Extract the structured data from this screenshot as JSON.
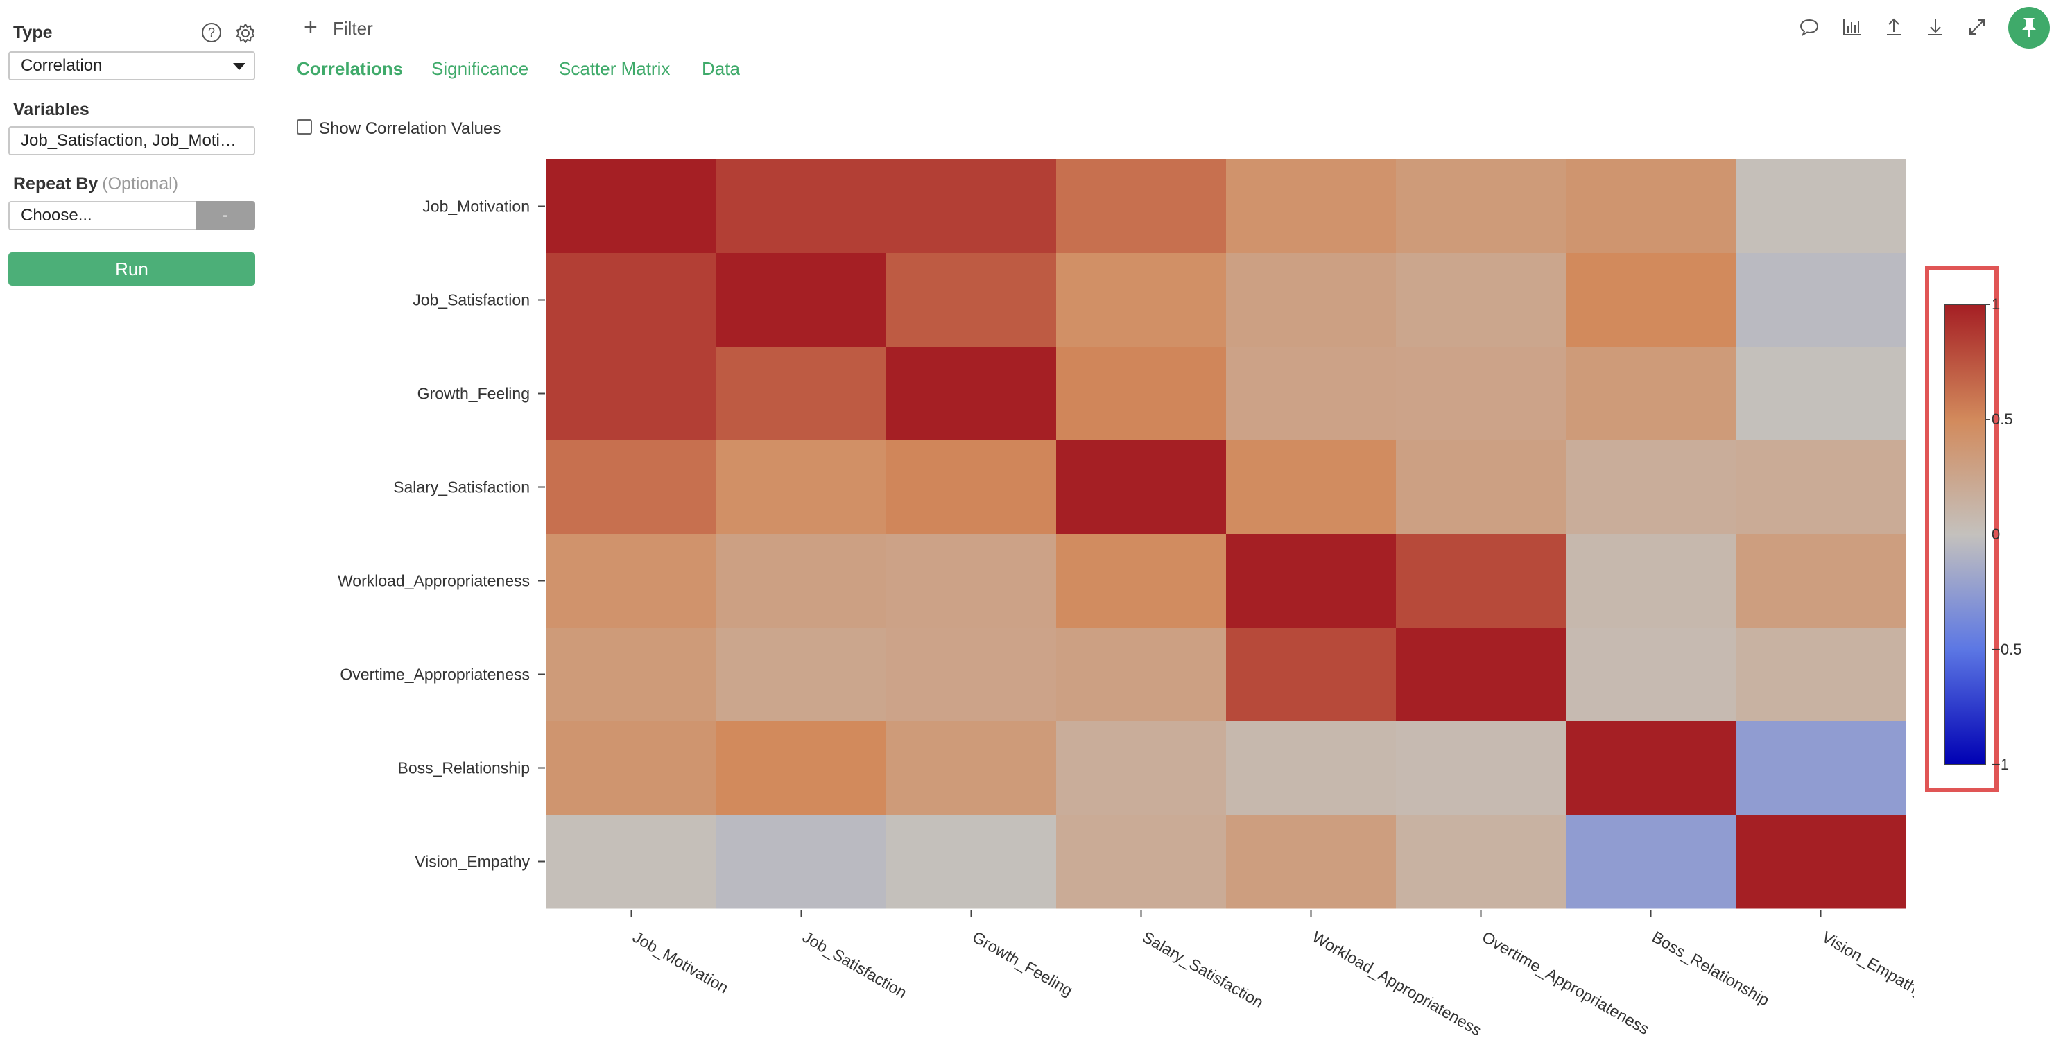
{
  "left_panel": {
    "type_label": "Type",
    "type_value": "Correlation",
    "variables_label": "Variables",
    "variables_value": "Job_Satisfaction, Job_Moti…",
    "repeat_by_label": "Repeat By",
    "repeat_by_optional": "(Optional)",
    "repeat_by_placeholder": "Choose...",
    "repeat_by_button": "-",
    "run_label": "Run"
  },
  "header": {
    "filter_label": "Filter",
    "tabs": [
      {
        "label": "Correlations",
        "active": true
      },
      {
        "label": "Significance",
        "active": false
      },
      {
        "label": "Scatter Matrix",
        "active": false
      },
      {
        "label": "Data",
        "active": false
      }
    ],
    "toolbar_icons": [
      "comment-icon",
      "chart-icon",
      "upload-icon",
      "download-icon",
      "expand-icon",
      "pin-icon"
    ]
  },
  "options": {
    "show_correlation_values_label": "Show Correlation Values",
    "show_correlation_values_checked": false
  },
  "accent_color": "#3faa6a",
  "chart_data": {
    "type": "heatmap",
    "variables": [
      "Job_Motivation",
      "Job_Satisfaction",
      "Growth_Feeling",
      "Salary_Satisfaction",
      "Workload_Appropriateness",
      "Overtime_Appropriateness",
      "Boss_Relationship",
      "Vision_Empathy"
    ],
    "matrix": [
      [
        1.0,
        0.85,
        0.85,
        0.62,
        0.42,
        0.35,
        0.4,
        0.02
      ],
      [
        0.85,
        1.0,
        0.72,
        0.45,
        0.3,
        0.25,
        0.5,
        -0.05
      ],
      [
        0.85,
        0.72,
        1.0,
        0.52,
        0.28,
        0.27,
        0.35,
        0.01
      ],
      [
        0.62,
        0.45,
        0.52,
        1.0,
        0.48,
        0.3,
        0.18,
        0.2
      ],
      [
        0.42,
        0.3,
        0.28,
        0.48,
        1.0,
        0.8,
        0.08,
        0.32
      ],
      [
        0.35,
        0.25,
        0.27,
        0.3,
        0.8,
        1.0,
        0.06,
        0.14
      ],
      [
        0.4,
        0.5,
        0.35,
        0.18,
        0.08,
        0.06,
        1.0,
        -0.25
      ],
      [
        0.02,
        -0.05,
        0.01,
        0.2,
        0.32,
        0.14,
        -0.25,
        1.0
      ]
    ],
    "color_range": [
      -1,
      1
    ],
    "colorbar_ticks": [
      "1",
      "0.5",
      "0",
      "−0.5",
      "−1"
    ],
    "colorbar_highlighted": true
  }
}
